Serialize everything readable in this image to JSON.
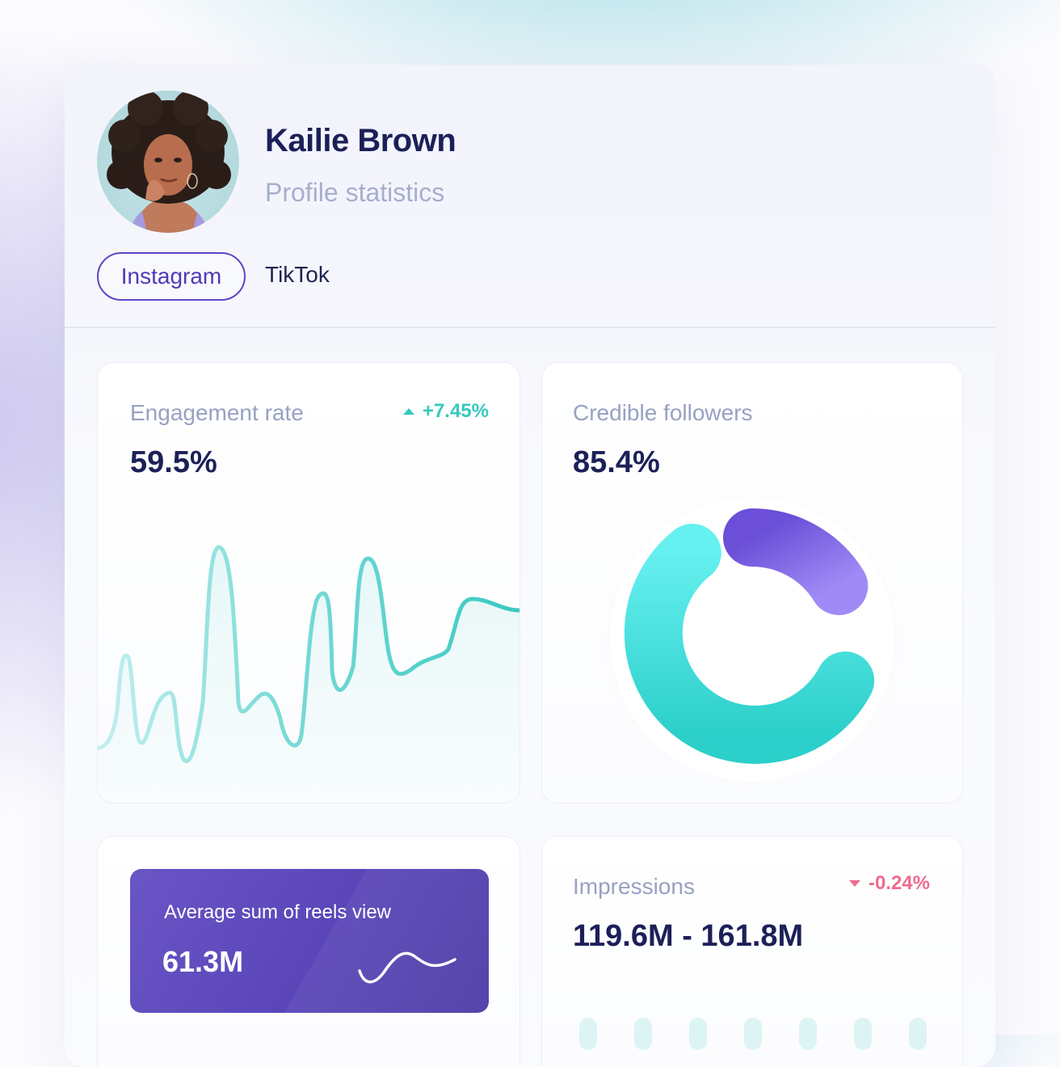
{
  "profile": {
    "name": "Kailie Brown",
    "subtitle": "Profile statistics"
  },
  "tabs": [
    {
      "label": "Instagram",
      "active": true
    },
    {
      "label": "TikTok",
      "active": false
    }
  ],
  "engagement": {
    "label": "Engagement rate",
    "value": "59.5%",
    "delta": "+7.45%",
    "delta_direction": "up"
  },
  "credible": {
    "label": "Credible followers",
    "value": "85.4%"
  },
  "reels": {
    "label": "Average sum of reels view",
    "value": "61.3M"
  },
  "impressions": {
    "label": "Impressions",
    "value": "119.6M - 161.8M",
    "delta": "-0.24%",
    "delta_direction": "down"
  },
  "colors": {
    "accent_purple": "#5c46c6",
    "teal": "#35c9bd",
    "negative": "#f06a8e",
    "text_dark": "#1c2058",
    "text_muted": "#98a1c2"
  }
}
